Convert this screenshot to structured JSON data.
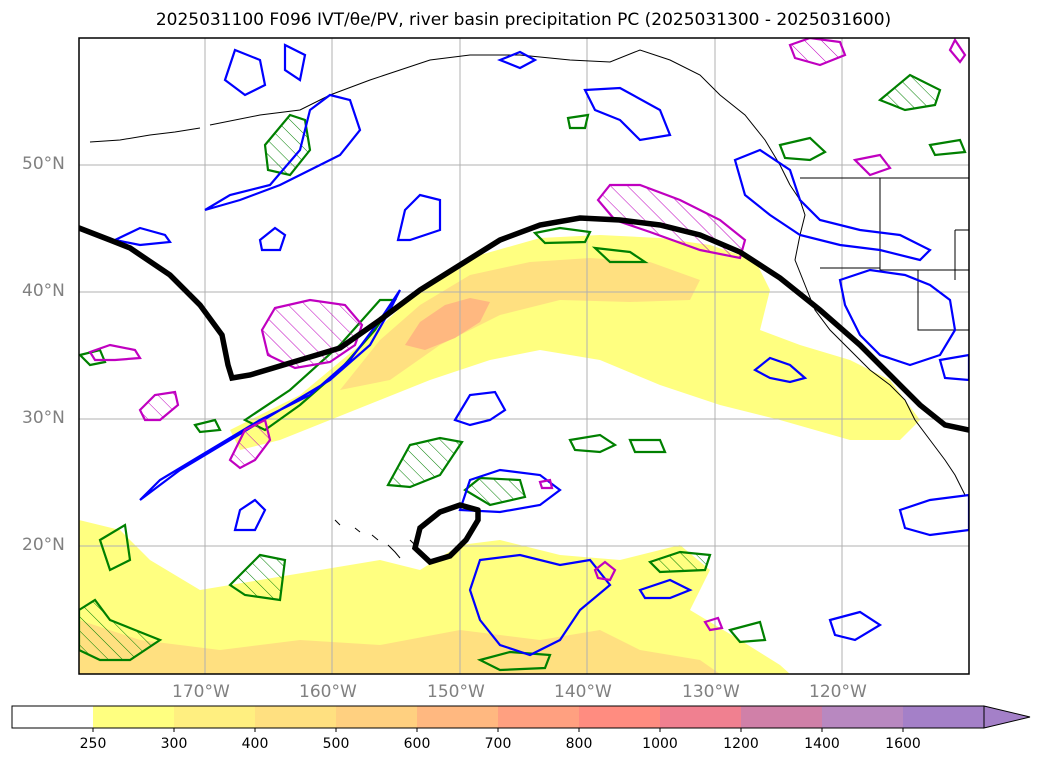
{
  "title": "2025031100 F096 IVT/θe/PV, river basin precipitation PC (2025031300 - 2025031600)",
  "map": {
    "lat_labels": [
      "50°N",
      "40°N",
      "30°N",
      "20°N"
    ],
    "lon_labels": [
      "170°W",
      "160°W",
      "150°W",
      "140°W",
      "130°W",
      "120°W"
    ],
    "contour_colors": {
      "ivt": "#0000ff",
      "theta_e": "#008000",
      "pv": "#c000c0",
      "jet": "#000000"
    }
  },
  "colorbar": {
    "ticks": [
      "250",
      "300",
      "400",
      "500",
      "600",
      "700",
      "800",
      "1000",
      "1200",
      "1400",
      "1600"
    ],
    "colors": [
      "#ffffff",
      "#ffff80",
      "#ffef80",
      "#ffe080",
      "#ffd080",
      "#ffb880",
      "#ffa080",
      "#ff8c80",
      "#f08090",
      "#d080a8",
      "#b888c0",
      "#a480c8"
    ]
  }
}
